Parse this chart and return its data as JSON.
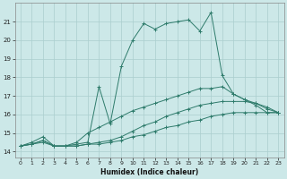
{
  "xlabel": "Humidex (Indice chaleur)",
  "ylabel": "",
  "background_color": "#cce8e8",
  "grid_color": "#aacece",
  "line_color": "#2e7b6b",
  "xlim": [
    -0.5,
    23.5
  ],
  "ylim": [
    13.7,
    22.0
  ],
  "yticks": [
    14,
    15,
    16,
    17,
    18,
    19,
    20,
    21
  ],
  "xticks": [
    0,
    1,
    2,
    3,
    4,
    5,
    6,
    7,
    8,
    9,
    10,
    11,
    12,
    13,
    14,
    15,
    16,
    17,
    18,
    19,
    20,
    21,
    22,
    23
  ],
  "series": [
    {
      "x": [
        0,
        1,
        2,
        3,
        4,
        5,
        6,
        7,
        8,
        9,
        10,
        11,
        12,
        13,
        14,
        15,
        16,
        17,
        18,
        19,
        20,
        21,
        22,
        23
      ],
      "y": [
        14.3,
        14.5,
        14.8,
        14.3,
        14.3,
        14.4,
        14.5,
        17.5,
        15.5,
        18.6,
        20.0,
        20.9,
        20.6,
        20.9,
        21.0,
        21.1,
        20.5,
        21.5,
        18.1,
        17.1,
        16.8,
        16.5,
        16.1,
        16.1
      ]
    },
    {
      "x": [
        0,
        1,
        2,
        3,
        4,
        5,
        6,
        7,
        8,
        9,
        10,
        11,
        12,
        13,
        14,
        15,
        16,
        17,
        18,
        19,
        20,
        21,
        22,
        23
      ],
      "y": [
        14.3,
        14.4,
        14.6,
        14.3,
        14.3,
        14.5,
        15.0,
        15.3,
        15.6,
        15.9,
        16.2,
        16.4,
        16.6,
        16.8,
        17.0,
        17.2,
        17.4,
        17.4,
        17.5,
        17.1,
        16.8,
        16.6,
        16.3,
        16.1
      ]
    },
    {
      "x": [
        0,
        1,
        2,
        3,
        4,
        5,
        6,
        7,
        8,
        9,
        10,
        11,
        12,
        13,
        14,
        15,
        16,
        17,
        18,
        19,
        20,
        21,
        22,
        23
      ],
      "y": [
        14.3,
        14.4,
        14.6,
        14.3,
        14.3,
        14.3,
        14.4,
        14.5,
        14.6,
        14.8,
        15.1,
        15.4,
        15.6,
        15.9,
        16.1,
        16.3,
        16.5,
        16.6,
        16.7,
        16.7,
        16.7,
        16.6,
        16.4,
        16.1
      ]
    },
    {
      "x": [
        0,
        1,
        2,
        3,
        4,
        5,
        6,
        7,
        8,
        9,
        10,
        11,
        12,
        13,
        14,
        15,
        16,
        17,
        18,
        19,
        20,
        21,
        22,
        23
      ],
      "y": [
        14.3,
        14.4,
        14.5,
        14.3,
        14.3,
        14.3,
        14.4,
        14.4,
        14.5,
        14.6,
        14.8,
        14.9,
        15.1,
        15.3,
        15.4,
        15.6,
        15.7,
        15.9,
        16.0,
        16.1,
        16.1,
        16.1,
        16.1,
        16.1
      ]
    }
  ]
}
